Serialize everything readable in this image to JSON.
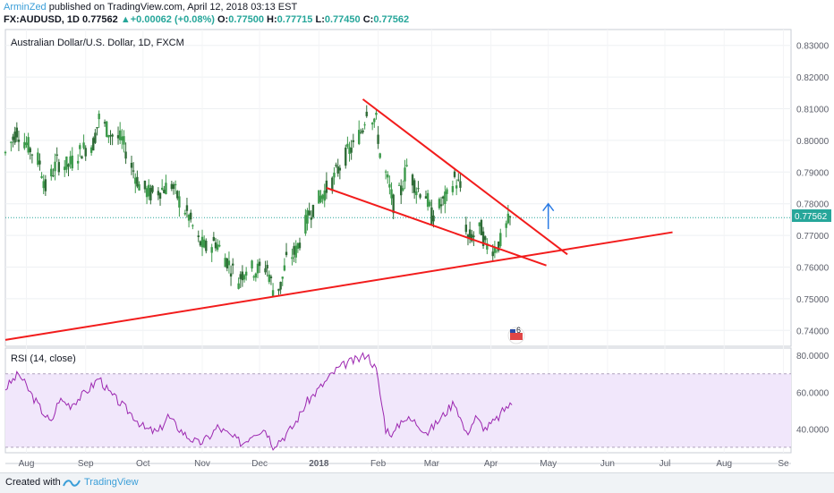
{
  "header": {
    "author": "ArminZed",
    "published": " published on TradingView.com, April 12, 2018 03:13 EST",
    "symbol": "FX:AUDUSD, 1D",
    "price": "0.77562",
    "change": "+0.00062 (+0.08%)",
    "o_label": "O:",
    "o": "0.77500",
    "h_label": "H:",
    "h": "0.77715",
    "l_label": "L:",
    "l": "0.77450",
    "c_label": "C:",
    "c": "0.77562"
  },
  "main_title": "Australian Dollar/U.S. Dollar, 1D, FXCM",
  "rsi_title": "RSI (14, close)",
  "events_badge": "6",
  "footer": {
    "created_with": "Created with",
    "brand": "TradingView"
  },
  "colors": {
    "up": "#26a69a",
    "down": "#ef5350",
    "candle": "#1e8a3a",
    "trendline": "#f21c1c",
    "arrow": "#2a7be4",
    "rsi": "#9c27b0",
    "rsi_band": "#f1e7fb"
  },
  "chart_data": [
    {
      "type": "candlestick",
      "title": "Australian Dollar/U.S. Dollar, 1D, FXCM",
      "ylim": [
        0.735,
        0.835
      ],
      "y_ticks": [
        "0.83000",
        "0.82000",
        "0.81000",
        "0.80000",
        "0.79000",
        "0.78000",
        "0.77000",
        "0.76000",
        "0.75000",
        "0.74000"
      ],
      "x_ticks": [
        "Aug",
        "Sep",
        "Oct",
        "Nov",
        "Dec",
        "2018",
        "Feb",
        "Mar",
        "Apr",
        "May",
        "Jun",
        "Jul",
        "Aug",
        "Se"
      ],
      "x_range": [
        "2017-07-21",
        "2018-09-05"
      ],
      "last_price_label": "0.77562",
      "close_path": [
        [
          "2017-07-21",
          0.796
        ],
        [
          "2017-07-27",
          0.803
        ],
        [
          "2017-08-01",
          0.799
        ],
        [
          "2017-08-08",
          0.793
        ],
        [
          "2017-08-11",
          0.785
        ],
        [
          "2017-08-17",
          0.793
        ],
        [
          "2017-08-23",
          0.792
        ],
        [
          "2017-08-30",
          0.797
        ],
        [
          "2017-09-05",
          0.799
        ],
        [
          "2017-09-08",
          0.807
        ],
        [
          "2017-09-14",
          0.802
        ],
        [
          "2017-09-20",
          0.8
        ],
        [
          "2017-09-25",
          0.792
        ],
        [
          "2017-09-29",
          0.786
        ],
        [
          "2017-10-05",
          0.783
        ],
        [
          "2017-10-12",
          0.785
        ],
        [
          "2017-10-16",
          0.786
        ],
        [
          "2017-10-20",
          0.781
        ],
        [
          "2017-10-25",
          0.776
        ],
        [
          "2017-10-30",
          0.768
        ],
        [
          "2017-11-03",
          0.766
        ],
        [
          "2017-11-08",
          0.768
        ],
        [
          "2017-11-14",
          0.762
        ],
        [
          "2017-11-20",
          0.756
        ],
        [
          "2017-11-24",
          0.76
        ],
        [
          "2017-11-29",
          0.759
        ],
        [
          "2017-12-05",
          0.76
        ],
        [
          "2017-12-08",
          0.753
        ],
        [
          "2017-12-12",
          0.754
        ],
        [
          "2017-12-15",
          0.762
        ],
        [
          "2017-12-20",
          0.765
        ],
        [
          "2017-12-27",
          0.777
        ],
        [
          "2018-01-03",
          0.783
        ],
        [
          "2018-01-08",
          0.787
        ],
        [
          "2018-01-12",
          0.792
        ],
        [
          "2018-01-16",
          0.796
        ],
        [
          "2018-01-19",
          0.798
        ],
        [
          "2018-01-24",
          0.804
        ],
        [
          "2018-01-26",
          0.81
        ],
        [
          "2018-01-31",
          0.806
        ],
        [
          "2018-02-02",
          0.796
        ],
        [
          "2018-02-06",
          0.787
        ],
        [
          "2018-02-09",
          0.78
        ],
        [
          "2018-02-13",
          0.784
        ],
        [
          "2018-02-16",
          0.792
        ],
        [
          "2018-02-21",
          0.785
        ],
        [
          "2018-02-26",
          0.783
        ],
        [
          "2018-03-01",
          0.776
        ],
        [
          "2018-03-05",
          0.779
        ],
        [
          "2018-03-09",
          0.782
        ],
        [
          "2018-03-13",
          0.788
        ],
        [
          "2018-03-16",
          0.785
        ],
        [
          "2018-03-20",
          0.769
        ],
        [
          "2018-03-23",
          0.77
        ],
        [
          "2018-03-27",
          0.772
        ],
        [
          "2018-03-29",
          0.767
        ],
        [
          "2018-04-03",
          0.766
        ],
        [
          "2018-04-06",
          0.768
        ],
        [
          "2018-04-10",
          0.774
        ],
        [
          "2018-04-12",
          0.7756
        ]
      ],
      "trendlines": [
        {
          "name": "wedge-upper",
          "from": [
            "2018-01-24",
            0.813
          ],
          "to": [
            "2018-05-11",
            0.764
          ]
        },
        {
          "name": "wedge-lower",
          "from": [
            "2018-01-05",
            0.785
          ],
          "to": [
            "2018-04-30",
            0.7605
          ]
        },
        {
          "name": "support",
          "from": [
            "2017-07-21",
            0.737
          ],
          "to": [
            "2018-07-05",
            0.771
          ]
        }
      ],
      "arrow": {
        "from": [
          "2018-05-01",
          0.772
        ],
        "to": [
          "2018-05-01",
          0.78
        ]
      }
    },
    {
      "type": "line",
      "title": "RSI (14, close)",
      "ylim": [
        27,
        84
      ],
      "y_ticks": [
        "80.0000",
        "60.0000",
        "40.0000"
      ],
      "bands": [
        30,
        70
      ],
      "x_range": [
        "2017-07-21",
        "2018-09-05"
      ],
      "values": [
        [
          "2017-07-21",
          62
        ],
        [
          "2017-07-28",
          70
        ],
        [
          "2017-08-04",
          58
        ],
        [
          "2017-08-09",
          50
        ],
        [
          "2017-08-14",
          43
        ],
        [
          "2017-08-18",
          56
        ],
        [
          "2017-08-24",
          53
        ],
        [
          "2017-08-30",
          58
        ],
        [
          "2017-09-05",
          64
        ],
        [
          "2017-09-08",
          68
        ],
        [
          "2017-09-13",
          60
        ],
        [
          "2017-09-19",
          54
        ],
        [
          "2017-09-26",
          47
        ],
        [
          "2017-10-02",
          40
        ],
        [
          "2017-10-09",
          38
        ],
        [
          "2017-10-14",
          47
        ],
        [
          "2017-10-18",
          42
        ],
        [
          "2017-10-24",
          36
        ],
        [
          "2017-10-30",
          32
        ],
        [
          "2017-11-04",
          35
        ],
        [
          "2017-11-09",
          41
        ],
        [
          "2017-11-16",
          36
        ],
        [
          "2017-11-22",
          32
        ],
        [
          "2017-11-28",
          38
        ],
        [
          "2017-12-04",
          40
        ],
        [
          "2017-12-08",
          31
        ],
        [
          "2017-12-14",
          36
        ],
        [
          "2017-12-19",
          42
        ],
        [
          "2017-12-26",
          55
        ],
        [
          "2018-01-03",
          64
        ],
        [
          "2018-01-10",
          72
        ],
        [
          "2018-01-16",
          76
        ],
        [
          "2018-01-22",
          78
        ],
        [
          "2018-01-26",
          81
        ],
        [
          "2018-01-31",
          72
        ],
        [
          "2018-02-05",
          40
        ],
        [
          "2018-02-09",
          37
        ],
        [
          "2018-02-14",
          46
        ],
        [
          "2018-02-20",
          44
        ],
        [
          "2018-02-27",
          38
        ],
        [
          "2018-03-06",
          46
        ],
        [
          "2018-03-13",
          55
        ],
        [
          "2018-03-19",
          37
        ],
        [
          "2018-03-24",
          46
        ],
        [
          "2018-03-29",
          40
        ],
        [
          "2018-04-04",
          45
        ],
        [
          "2018-04-09",
          52
        ],
        [
          "2018-04-12",
          53
        ]
      ]
    }
  ]
}
